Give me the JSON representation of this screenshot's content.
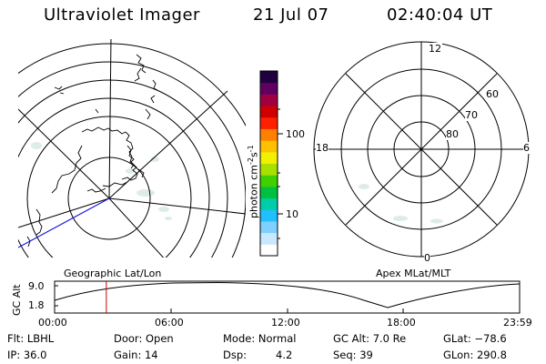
{
  "header": {
    "title": "Ultraviolet Imager",
    "date": "21 Jul 07",
    "time": "02:40:04 UT"
  },
  "colorbar": {
    "unit_main": "photon cm",
    "unit_exp1": "-2",
    "unit_s": "s",
    "unit_exp2": "-1",
    "tick_100": "100",
    "tick_10": "10",
    "colors": [
      "#ffffff",
      "#c8e8ff",
      "#80d0ff",
      "#20c0ff",
      "#00ccaa",
      "#00c040",
      "#40d000",
      "#a8e000",
      "#f0f000",
      "#ffc000",
      "#ff8000",
      "#ff2000",
      "#d00000",
      "#a00040",
      "#600060",
      "#200040"
    ]
  },
  "left_map": {
    "label": "Geographic Lat/Lon"
  },
  "right_map": {
    "label": "Apex MLat/MLT",
    "mlt_12": "12",
    "mlt_18": "18",
    "mlt_6": "6",
    "mlt_0": "0",
    "lat_60": "60",
    "lat_70": "70",
    "lat_80": "80"
  },
  "altitude_plot": {
    "axis_label": "GC Alt",
    "y_max": "9.0",
    "y_min": "1.8",
    "x_ticks": [
      "00:00",
      "06:00",
      "12:00",
      "18:00",
      "23:59"
    ],
    "current_time_marker_hours": 2.67,
    "marker_color": "#cc0000"
  },
  "info": {
    "flt": "Flt: LBHL",
    "ip": "IP: 36.0",
    "door": "Door: Open",
    "gain": "Gain: 14",
    "mode": "Mode: Normal",
    "dsp_label": "Dsp:",
    "dsp_value": "4.2",
    "gc_alt": "GC Alt: 7.0 Re",
    "seq": "Seq: 39",
    "glat": "GLat: −78.6",
    "glon": "GLon: 290.8"
  }
}
